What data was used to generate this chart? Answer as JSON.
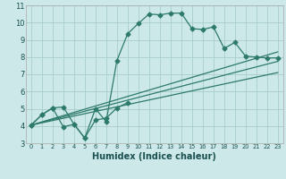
{
  "main_line_x": [
    0,
    1,
    2,
    3,
    4,
    5,
    6,
    7,
    8,
    9,
    10,
    11,
    12,
    13,
    14,
    15,
    16,
    17,
    18,
    19,
    20,
    21,
    22,
    23
  ],
  "main_line_y": [
    4.05,
    4.65,
    5.05,
    5.1,
    4.1,
    3.3,
    5.0,
    4.25,
    7.8,
    9.35,
    9.95,
    10.5,
    10.45,
    10.55,
    10.55,
    9.65,
    9.6,
    9.75,
    8.5,
    8.85,
    8.05,
    8.0,
    7.95,
    7.95
  ],
  "lower_line_x": [
    0,
    1,
    2,
    3,
    4,
    5,
    6,
    7,
    8,
    9
  ],
  "lower_line_y": [
    4.05,
    4.65,
    5.05,
    3.95,
    4.1,
    3.3,
    4.35,
    4.45,
    5.05,
    5.35
  ],
  "trend1_x": [
    0,
    23
  ],
  "trend1_y": [
    4.05,
    8.3
  ],
  "trend2_x": [
    0,
    23
  ],
  "trend2_y": [
    4.05,
    7.75
  ],
  "trend3_x": [
    0,
    23
  ],
  "trend3_y": [
    4.05,
    7.1
  ],
  "color": "#2d7a6a",
  "bg_color": "#cce8e8",
  "grid_color": "#a8cccc",
  "xlabel": "Humidex (Indice chaleur)",
  "xlim": [
    -0.5,
    23.5
  ],
  "ylim": [
    3.0,
    11.0
  ],
  "xticks": [
    0,
    1,
    2,
    3,
    4,
    5,
    6,
    7,
    8,
    9,
    10,
    11,
    12,
    13,
    14,
    15,
    16,
    17,
    18,
    19,
    20,
    21,
    22,
    23
  ],
  "yticks": [
    3,
    4,
    5,
    6,
    7,
    8,
    9,
    10,
    11
  ]
}
